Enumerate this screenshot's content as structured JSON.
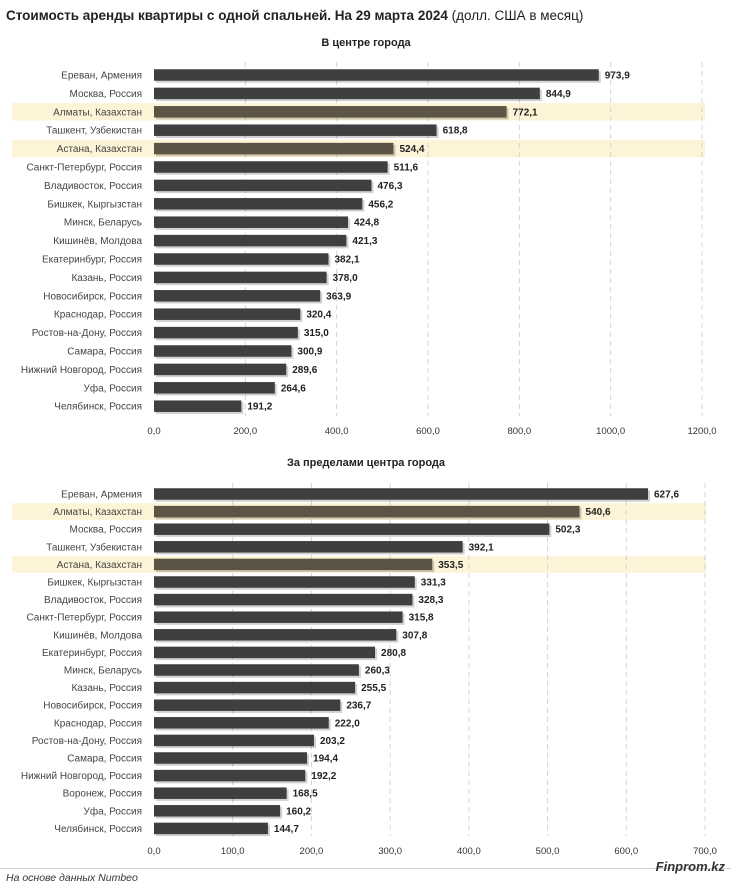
{
  "title": {
    "bold": "Стоимость аренды квартиры с одной спальней. На 29 марта 2024",
    "unit": " (долл. США в месяц)"
  },
  "source": "На основе данных Numbeo",
  "logo": "Finprom.kz",
  "colors": {
    "bar": "#3f3f3f",
    "highlight_bar": "#5c5545",
    "highlight_band": "#fdf3d6",
    "grid": "#d4d4d4"
  },
  "chart_data": [
    {
      "type": "bar",
      "orientation": "horizontal",
      "title": "В центре города",
      "xlim": [
        0,
        1200
      ],
      "xticks": [
        0,
        200,
        400,
        600,
        800,
        1000,
        1200
      ],
      "xtick_labels": [
        "0,0",
        "200,0",
        "400,0",
        "600,0",
        "800,0",
        "1000,0",
        "1200,0"
      ],
      "categories": [
        "Ереван, Армения",
        "Москва, Россия",
        "Алматы, Казахстан",
        "Ташкент, Узбекистан",
        "Астана, Казахстан",
        "Санкт-Петербург, Россия",
        "Владивосток, Россия",
        "Бишкек, Кыргызстан",
        "Минск, Беларусь",
        "Кишинёв, Молдова",
        "Екатеринбург, Россия",
        "Казань, Россия",
        "Новосибирск, Россия",
        "Краснодар, Россия",
        "Ростов-на-Дону, Россия",
        "Самара, Россия",
        "Нижний Новгород, Россия",
        "Уфа, Россия",
        "Челябинск, Россия"
      ],
      "values": [
        973.9,
        844.9,
        772.1,
        618.8,
        524.4,
        511.6,
        476.3,
        456.2,
        424.8,
        421.3,
        382.1,
        378.0,
        363.9,
        320.4,
        315.0,
        300.9,
        289.6,
        264.6,
        191.2
      ],
      "value_labels": [
        "973,9",
        "844,9",
        "772,1",
        "618,8",
        "524,4",
        "511,6",
        "476,3",
        "456,2",
        "424,8",
        "421,3",
        "382,1",
        "378,0",
        "363,9",
        "320,4",
        "315,0",
        "300,9",
        "289,6",
        "264,6",
        "191,2"
      ],
      "highlighted": [
        "Алматы, Казахстан",
        "Астана, Казахстан"
      ]
    },
    {
      "type": "bar",
      "orientation": "horizontal",
      "title": "За пределами центра города",
      "xlim": [
        0,
        700
      ],
      "xticks": [
        0,
        100,
        200,
        300,
        400,
        500,
        600,
        700
      ],
      "xtick_labels": [
        "0,0",
        "100,0",
        "200,0",
        "300,0",
        "400,0",
        "500,0",
        "600,0",
        "700,0"
      ],
      "categories": [
        "Ереван, Армения",
        "Алматы, Казахстан",
        "Москва, Россия",
        "Ташкент, Узбекистан",
        "Астана, Казахстан",
        "Бишкек, Кыргызстан",
        "Владивосток, Россия",
        "Санкт-Петербург, Россия",
        "Кишинёв, Молдова",
        "Екатеринбург, Россия",
        "Минск, Беларусь",
        "Казань, Россия",
        "Новосибирск, Россия",
        "Краснодар, Россия",
        "Ростов-на-Дону, Россия",
        "Самара, Россия",
        "Нижний Новгород, Россия",
        "Воронеж, Россия",
        "Уфа, Россия",
        "Челябинск, Россия"
      ],
      "values": [
        627.6,
        540.6,
        502.3,
        392.1,
        353.5,
        331.3,
        328.3,
        315.8,
        307.8,
        280.8,
        260.3,
        255.5,
        236.7,
        222.0,
        203.2,
        194.4,
        192.2,
        168.5,
        160.2,
        144.7
      ],
      "value_labels": [
        "627,6",
        "540,6",
        "502,3",
        "392,1",
        "353,5",
        "331,3",
        "328,3",
        "315,8",
        "307,8",
        "280,8",
        "260,3",
        "255,5",
        "236,7",
        "222,0",
        "203,2",
        "194,4",
        "192,2",
        "168,5",
        "160,2",
        "144,7"
      ],
      "highlighted": [
        "Алматы, Казахстан",
        "Астана, Казахстан"
      ]
    }
  ]
}
